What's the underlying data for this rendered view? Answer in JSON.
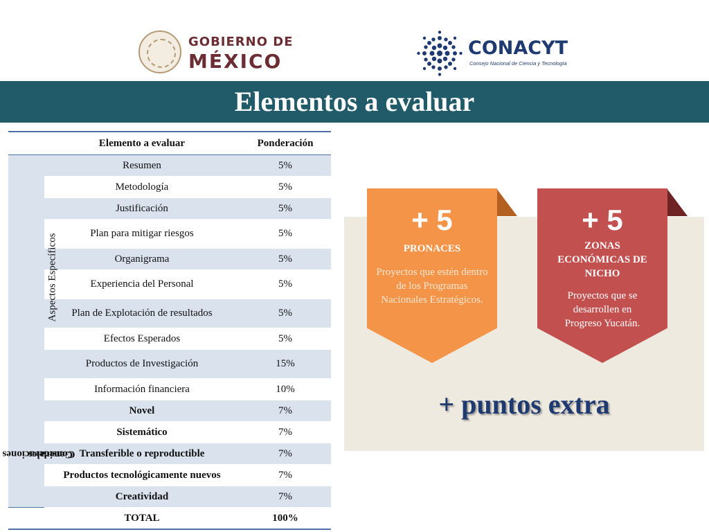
{
  "header": {
    "gob_line1": "GOBIERNO DE",
    "gob_line2": "MÉXICO",
    "conacyt_name": "CONACYT",
    "conacyt_sub": "Consejo Nacional de Ciencia y Tecnología",
    "colors": {
      "gob": "#6b2c34",
      "conacyt": "#1f3a70",
      "title_bar": "#215a68"
    }
  },
  "title": "Elementos a evaluar",
  "table": {
    "headers": [
      "Elemento a evaluar",
      "Ponderación"
    ],
    "groups": [
      {
        "label": "Aspectos Específicos",
        "rows": [
          {
            "label": "Resumen",
            "value": "5%"
          },
          {
            "label": "Metodología",
            "value": "5%"
          },
          {
            "label": "Justificación",
            "value": "5%"
          },
          {
            "label": "Plan para mitigar riesgos",
            "value": "5%"
          },
          {
            "label": "Organigrama",
            "value": "5%"
          },
          {
            "label": "Experiencia del Personal",
            "value": "5%"
          },
          {
            "label": "Plan de Explotación de resultados",
            "value": "5%"
          },
          {
            "label": "Efectos Esperados",
            "value": "5%"
          },
          {
            "label": "Productos de Investigación",
            "value": "15%"
          },
          {
            "label": "Información financiera",
            "value": "10%"
          }
        ]
      },
      {
        "label_line1": "Consideraciones",
        "label_line2": "Generales",
        "rows": [
          {
            "label": "Novel",
            "value": "7%"
          },
          {
            "label": "Sistemático",
            "value": "7%"
          },
          {
            "label": "Transferible o reproductible",
            "value": "7%"
          },
          {
            "label": "Productos tecnológicamente nuevos",
            "value": "7%"
          },
          {
            "label": "Creatividad",
            "value": "7%"
          }
        ]
      }
    ],
    "total_label": "TOTAL",
    "total_value": "100%"
  },
  "bonus": [
    {
      "points": "+ 5",
      "title": "PRONACES",
      "description": "Proyectos que estén dentro de los Programas Nacionales Estratégicos.",
      "color": "#f49448"
    },
    {
      "points": "+ 5",
      "title": "ZONAS ECONÓMICAS DE NICHO",
      "description": "Proyectos que se desarrollen en Progreso Yucatán.",
      "color": "#c2504e"
    }
  ],
  "extra_label": "+ puntos extra"
}
